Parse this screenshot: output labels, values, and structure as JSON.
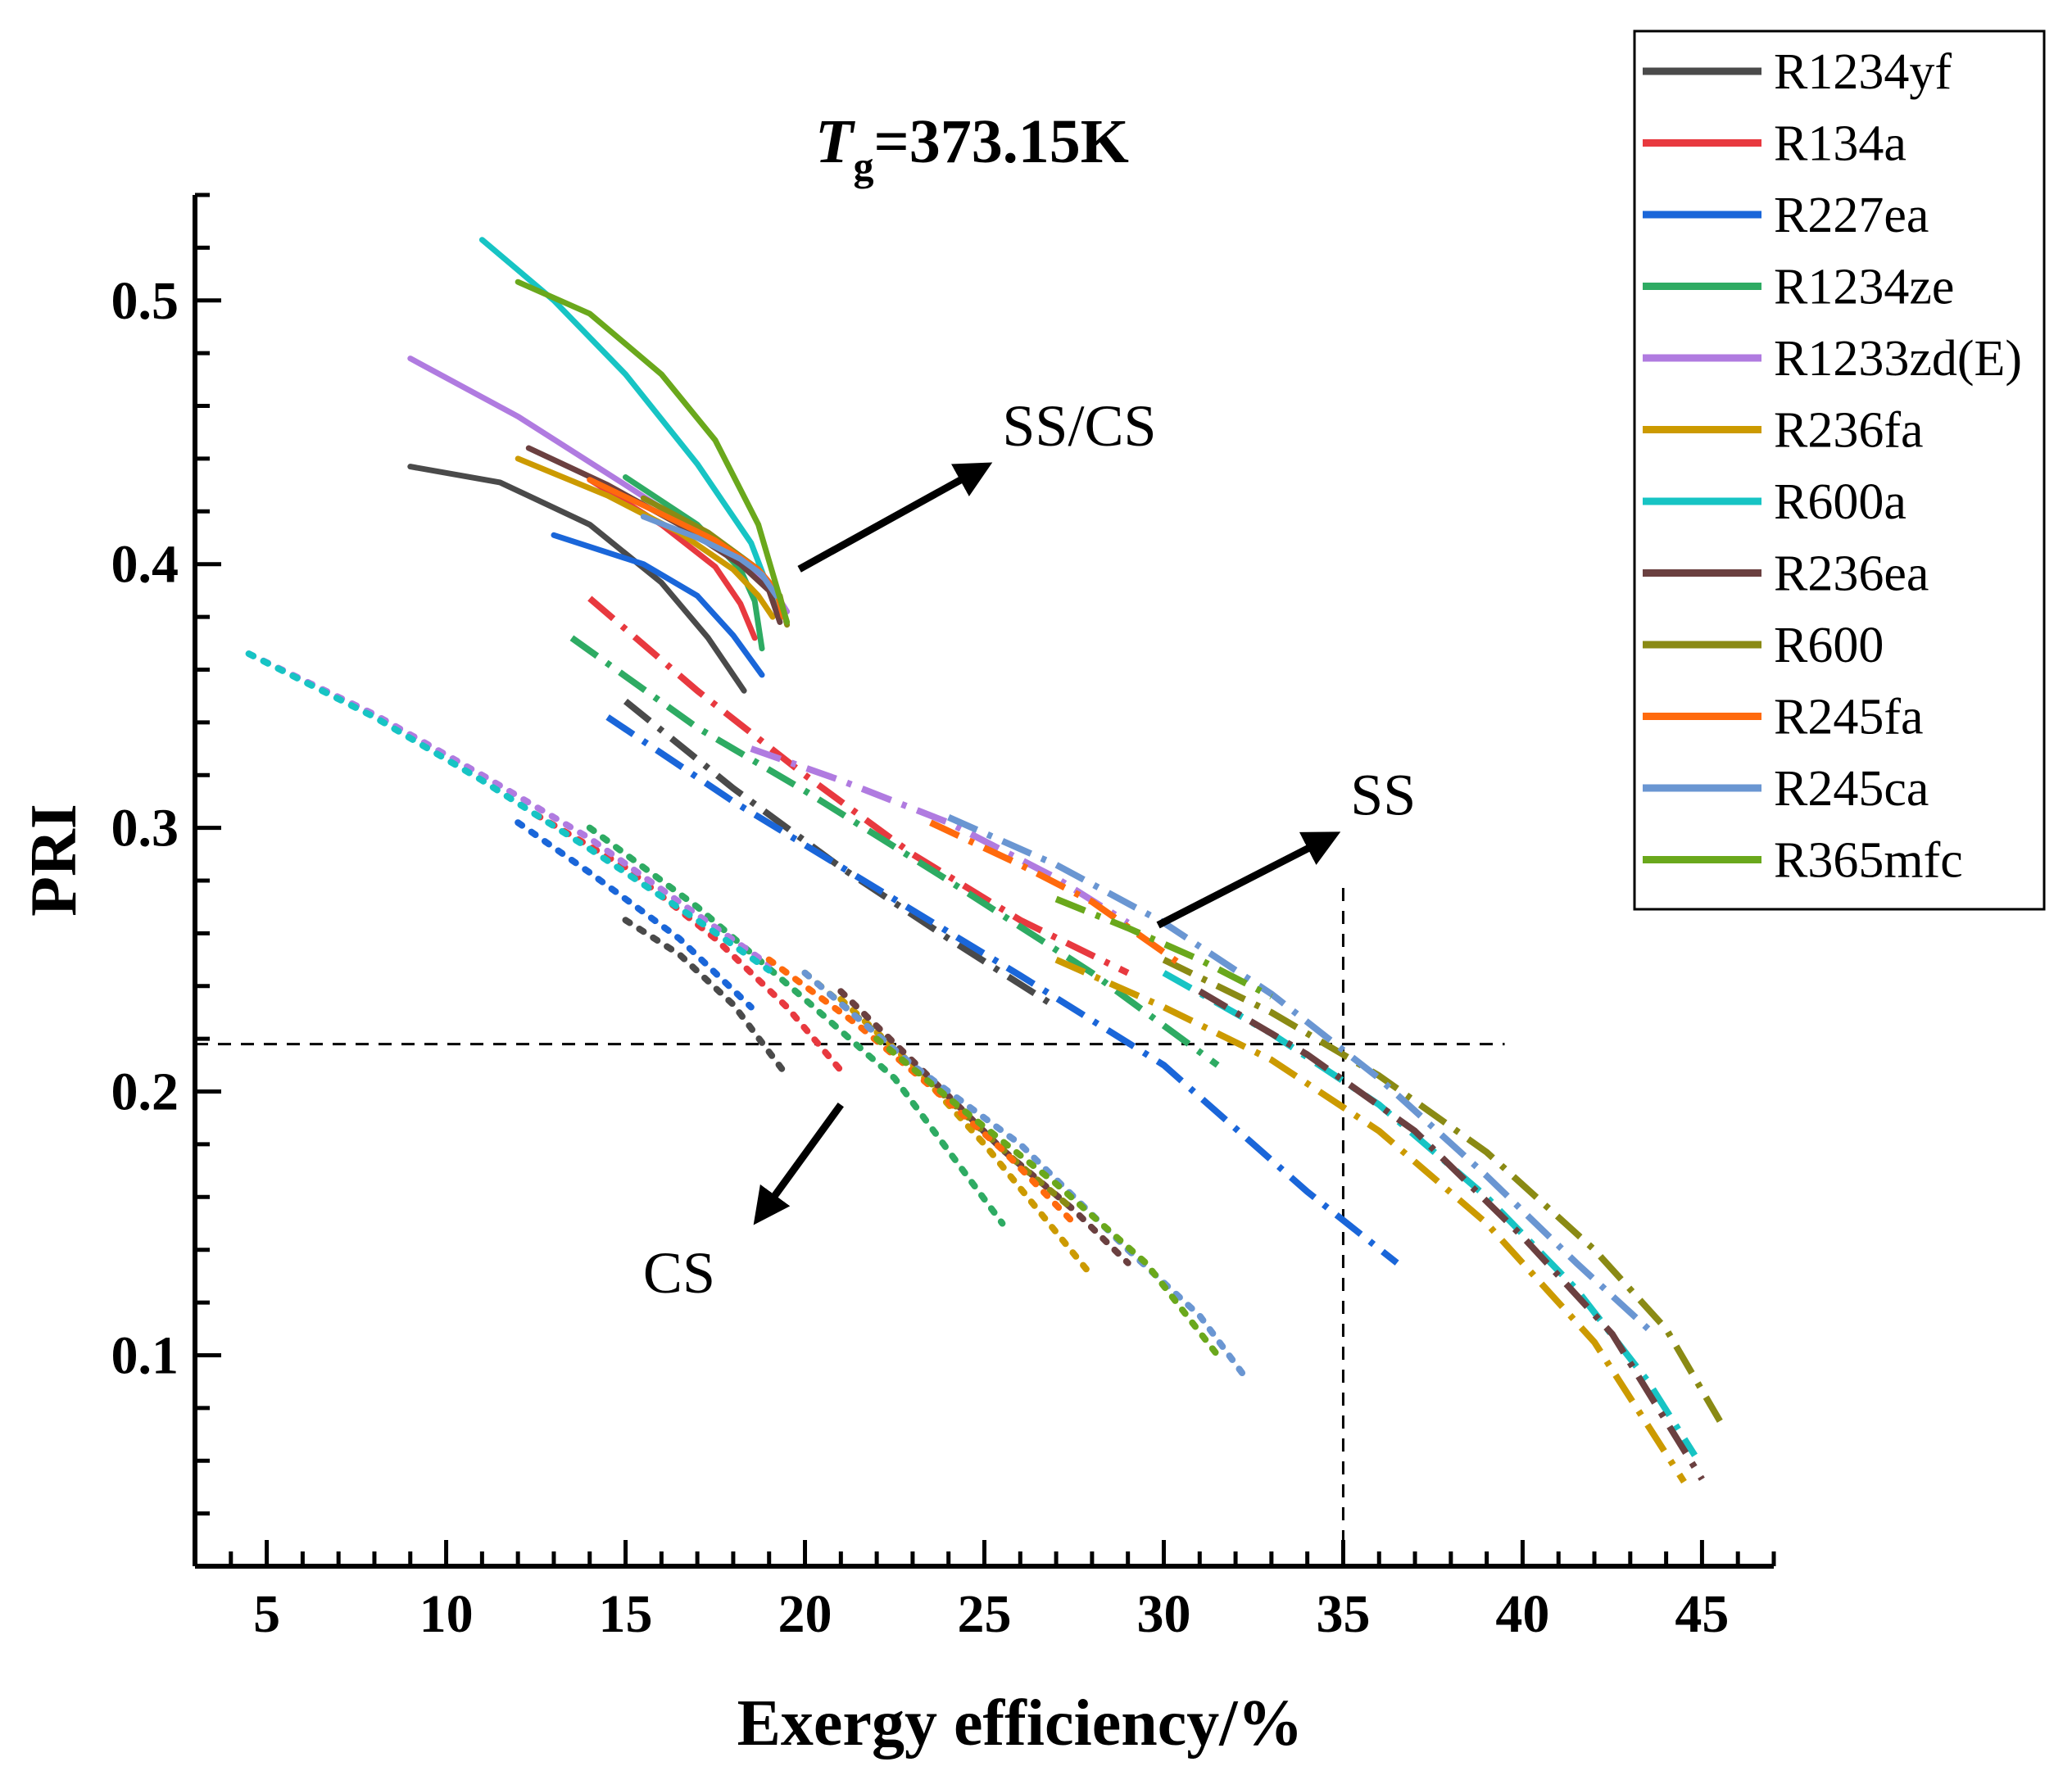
{
  "chart_data": {
    "type": "line",
    "title_symbol": "T",
    "title_subscript": "g",
    "title_rest": "=373.15K",
    "xlabel": "Exergy efficiency/%",
    "ylabel": "PRI",
    "xlim": [
      3,
      47
    ],
    "ylim": [
      0.02,
      0.54
    ],
    "xticks": [
      5,
      10,
      15,
      20,
      25,
      30,
      35,
      40,
      45
    ],
    "yticks": [
      0.1,
      0.2,
      0.3,
      0.4,
      0.5
    ],
    "ytick_labels": [
      "0.1",
      "0.2",
      "0.3",
      "0.4",
      "0.5"
    ],
    "legend_position": "top-right",
    "line_styles": {
      "solid": "SS/CS",
      "dash-dot": "SS",
      "dot": "CS"
    },
    "annotations": [
      {
        "text": "SS/CS",
        "point_to": [
          19.5,
          0.395
        ],
        "text_at": [
          25.5,
          0.445
        ]
      },
      {
        "text": "SS",
        "point_to": [
          29.5,
          0.26
        ],
        "text_at": [
          35.2,
          0.305
        ]
      },
      {
        "text": "CS",
        "point_to": [
          21,
          0.195
        ],
        "text_at": [
          18,
          0.133
        ]
      }
    ],
    "reference_lines": [
      {
        "orientation": "horizontal",
        "y": 0.218,
        "x_range": [
          3,
          39.5
        ]
      },
      {
        "orientation": "vertical",
        "x": 35,
        "y_range": [
          0.02,
          0.278
        ]
      }
    ],
    "series": [
      {
        "name": "R1234yf",
        "color": "#4a4a4a",
        "SS_CS": [
          [
            9,
            0.437
          ],
          [
            11.5,
            0.431
          ],
          [
            14,
            0.415
          ],
          [
            16,
            0.393
          ],
          [
            17.3,
            0.372
          ],
          [
            18.3,
            0.352
          ]
        ],
        "SS": [
          [
            15,
            0.348
          ],
          [
            18,
            0.315
          ],
          [
            21,
            0.285
          ],
          [
            24,
            0.258
          ],
          [
            27,
            0.232
          ]
        ],
        "CS": [
          [
            15,
            0.265
          ],
          [
            16.5,
            0.252
          ],
          [
            18,
            0.233
          ],
          [
            19.5,
            0.206
          ]
        ]
      },
      {
        "name": "R134a",
        "color": "#e8393f",
        "SS_CS": [
          [
            14,
            0.432
          ],
          [
            16,
            0.415
          ],
          [
            17.5,
            0.399
          ],
          [
            18.2,
            0.385
          ],
          [
            18.6,
            0.372
          ]
        ],
        "SS": [
          [
            14,
            0.387
          ],
          [
            17,
            0.352
          ],
          [
            20,
            0.32
          ],
          [
            23,
            0.29
          ],
          [
            26,
            0.265
          ],
          [
            29,
            0.245
          ]
        ],
        "CS": [
          [
            12.5,
            0.305
          ],
          [
            15,
            0.285
          ],
          [
            17.5,
            0.258
          ],
          [
            19.5,
            0.232
          ],
          [
            21,
            0.208
          ]
        ]
      },
      {
        "name": "R227ea",
        "color": "#1a66d9",
        "SS_CS": [
          [
            13,
            0.411
          ],
          [
            15.5,
            0.4
          ],
          [
            17,
            0.388
          ],
          [
            18,
            0.373
          ],
          [
            18.8,
            0.358
          ]
        ],
        "SS": [
          [
            14.5,
            0.342
          ],
          [
            18,
            0.31
          ],
          [
            22,
            0.277
          ],
          [
            26,
            0.244
          ],
          [
            30,
            0.21
          ],
          [
            34,
            0.162
          ],
          [
            36.5,
            0.135
          ]
        ],
        "CS": [
          [
            12,
            0.302
          ],
          [
            14,
            0.283
          ],
          [
            16.5,
            0.258
          ],
          [
            18.5,
            0.232
          ]
        ]
      },
      {
        "name": "R1234ze",
        "color": "#2eab63",
        "SS_CS": [
          [
            15,
            0.433
          ],
          [
            17,
            0.415
          ],
          [
            18.2,
            0.398
          ],
          [
            18.6,
            0.386
          ],
          [
            18.8,
            0.368
          ]
        ],
        "SS": [
          [
            13.5,
            0.372
          ],
          [
            17,
            0.338
          ],
          [
            20,
            0.314
          ],
          [
            24,
            0.28
          ],
          [
            28,
            0.245
          ],
          [
            31.5,
            0.21
          ]
        ],
        "CS": [
          [
            14,
            0.3
          ],
          [
            17,
            0.27
          ],
          [
            20,
            0.235
          ],
          [
            22.5,
            0.205
          ],
          [
            25.5,
            0.15
          ]
        ]
      },
      {
        "name": "R1233zd(E)",
        "color": "#b07be0",
        "SS_CS": [
          [
            9,
            0.478
          ],
          [
            12,
            0.456
          ],
          [
            15,
            0.43
          ],
          [
            17.5,
            0.408
          ],
          [
            19,
            0.393
          ],
          [
            19.5,
            0.382
          ]
        ],
        "SS": [
          [
            18.5,
            0.33
          ],
          [
            21,
            0.318
          ],
          [
            24,
            0.302
          ],
          [
            27,
            0.281
          ],
          [
            29,
            0.264
          ]
        ],
        "CS": [
          [
            4.5,
            0.366
          ],
          [
            8,
            0.343
          ],
          [
            11,
            0.32
          ],
          [
            14,
            0.296
          ],
          [
            17,
            0.267
          ],
          [
            19,
            0.248
          ]
        ]
      },
      {
        "name": "R236fa",
        "color": "#cc9a00",
        "SS_CS": [
          [
            12,
            0.44
          ],
          [
            14.5,
            0.426
          ],
          [
            16.5,
            0.412
          ],
          [
            18,
            0.398
          ],
          [
            18.7,
            0.388
          ],
          [
            19.1,
            0.38
          ]
        ],
        "SS": [
          [
            27,
            0.25
          ],
          [
            30,
            0.232
          ],
          [
            33,
            0.212
          ],
          [
            36,
            0.185
          ],
          [
            39,
            0.15
          ],
          [
            42,
            0.105
          ],
          [
            44.5,
            0.052
          ]
        ],
        "CS": [
          [
            21,
            0.235
          ],
          [
            23,
            0.21
          ],
          [
            25,
            0.18
          ],
          [
            26.5,
            0.155
          ],
          [
            28,
            0.13
          ]
        ]
      },
      {
        "name": "R600a",
        "color": "#17c4c4",
        "SS_CS": [
          [
            11,
            0.523
          ],
          [
            13,
            0.5
          ],
          [
            15,
            0.472
          ],
          [
            17,
            0.438
          ],
          [
            18.5,
            0.408
          ],
          [
            19.2,
            0.383
          ]
        ],
        "SS": [
          [
            30,
            0.245
          ],
          [
            33,
            0.222
          ],
          [
            36,
            0.195
          ],
          [
            39,
            0.16
          ],
          [
            41.5,
            0.125
          ],
          [
            43.5,
            0.09
          ],
          [
            44.8,
            0.062
          ]
        ],
        "CS": [
          [
            4.5,
            0.366
          ],
          [
            8,
            0.342
          ],
          [
            11,
            0.318
          ],
          [
            14,
            0.292
          ],
          [
            17,
            0.265
          ],
          [
            19,
            0.246
          ]
        ]
      },
      {
        "name": "R236ea",
        "color": "#6b4040",
        "SS_CS": [
          [
            12.3,
            0.444
          ],
          [
            14.5,
            0.43
          ],
          [
            16.5,
            0.415
          ],
          [
            18.2,
            0.4
          ],
          [
            19,
            0.39
          ],
          [
            19.3,
            0.378
          ]
        ],
        "SS": [
          [
            31,
            0.238
          ],
          [
            34,
            0.214
          ],
          [
            37,
            0.185
          ],
          [
            40,
            0.145
          ],
          [
            42.5,
            0.108
          ],
          [
            45,
            0.053
          ]
        ],
        "CS": [
          [
            21,
            0.238
          ],
          [
            23.5,
            0.205
          ],
          [
            25.5,
            0.178
          ],
          [
            27.5,
            0.155
          ],
          [
            29,
            0.135
          ]
        ]
      },
      {
        "name": "R600",
        "color": "#8a8a14",
        "SS_CS": [
          [
            15.5,
            0.425
          ],
          [
            17.3,
            0.412
          ],
          [
            18.7,
            0.398
          ],
          [
            19.3,
            0.388
          ],
          [
            19.5,
            0.377
          ]
        ],
        "SS": [
          [
            30,
            0.25
          ],
          [
            33,
            0.23
          ],
          [
            36,
            0.206
          ],
          [
            39,
            0.177
          ],
          [
            42,
            0.14
          ],
          [
            44,
            0.11
          ],
          [
            45.5,
            0.075
          ]
        ],
        "CS": [
          [
            20,
            0.245
          ],
          [
            22,
            0.222
          ],
          [
            24,
            0.197
          ],
          [
            26,
            0.172
          ],
          [
            27.5,
            0.155
          ]
        ]
      },
      {
        "name": "R245fa",
        "color": "#ff6a0d",
        "SS_CS": [
          [
            14,
            0.432
          ],
          [
            16,
            0.419
          ],
          [
            17.5,
            0.409
          ],
          [
            18.7,
            0.398
          ],
          [
            19.2,
            0.39
          ],
          [
            19.4,
            0.38
          ]
        ],
        "SS": [
          [
            23.5,
            0.302
          ],
          [
            26,
            0.286
          ],
          [
            28,
            0.272
          ],
          [
            30.5,
            0.248
          ]
        ],
        "CS": [
          [
            19,
            0.25
          ],
          [
            21.5,
            0.225
          ],
          [
            23.5,
            0.202
          ],
          [
            25.5,
            0.178
          ],
          [
            27.5,
            0.15
          ]
        ]
      },
      {
        "name": "R245ca",
        "color": "#6a96d2",
        "SS_CS": [
          [
            15.5,
            0.418
          ],
          [
            17,
            0.41
          ],
          [
            18.2,
            0.402
          ],
          [
            18.8,
            0.396
          ],
          [
            19.2,
            0.388
          ]
        ],
        "SS": [
          [
            24,
            0.304
          ],
          [
            27,
            0.286
          ],
          [
            30,
            0.264
          ],
          [
            33,
            0.237
          ],
          [
            36,
            0.205
          ],
          [
            39,
            0.168
          ],
          [
            41.5,
            0.135
          ],
          [
            43.5,
            0.11
          ]
        ],
        "CS": [
          [
            20,
            0.245
          ],
          [
            23,
            0.21
          ],
          [
            26,
            0.18
          ],
          [
            29,
            0.14
          ],
          [
            31,
            0.115
          ],
          [
            32.2,
            0.093
          ]
        ]
      },
      {
        "name": "R365mfc",
        "color": "#6aa81c",
        "SS_CS": [
          [
            12,
            0.507
          ],
          [
            14,
            0.495
          ],
          [
            16,
            0.472
          ],
          [
            17.5,
            0.447
          ],
          [
            18.7,
            0.415
          ],
          [
            19.5,
            0.378
          ]
        ],
        "SS": [
          [
            27,
            0.273
          ],
          [
            29,
            0.262
          ],
          [
            31,
            0.25
          ],
          [
            33,
            0.236
          ]
        ],
        "CS": [
          [
            22,
            0.22
          ],
          [
            24.5,
            0.192
          ],
          [
            27,
            0.165
          ],
          [
            29.5,
            0.135
          ],
          [
            31.5,
            0.1
          ]
        ]
      }
    ]
  }
}
